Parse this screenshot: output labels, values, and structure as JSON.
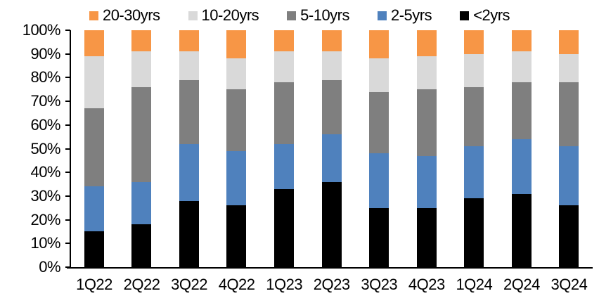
{
  "chart": {
    "legend": [
      {
        "label": "20-30yrs",
        "color": "#F79646"
      },
      {
        "label": "10-20yrs",
        "color": "#D9D9D9"
      },
      {
        "label": "5-10yrs",
        "color": "#7F7F7F"
      },
      {
        "label": "2-5yrs",
        "color": "#4F81BD"
      },
      {
        "label": "<2yrs",
        "color": "#000000"
      }
    ]
  },
  "chart_data": {
    "type": "bar",
    "stacked": "percent",
    "title": "",
    "xlabel": "",
    "ylabel": "",
    "ylim": [
      0,
      100
    ],
    "grid": false,
    "legend_position": "top",
    "y_ticks": [
      "100%",
      "90%",
      "80%",
      "70%",
      "60%",
      "50%",
      "40%",
      "30%",
      "20%",
      "10%",
      "0%"
    ],
    "categories": [
      "1Q22",
      "2Q22",
      "3Q22",
      "4Q22",
      "1Q23",
      "2Q23",
      "3Q23",
      "4Q23",
      "1Q24",
      "2Q24",
      "3Q24"
    ],
    "series": [
      {
        "name": "<2yrs",
        "color": "#000000",
        "values": [
          15,
          18,
          28,
          26,
          33,
          36,
          25,
          25,
          29,
          31,
          26
        ]
      },
      {
        "name": "2-5yrs",
        "color": "#4F81BD",
        "values": [
          19,
          18,
          24,
          23,
          19,
          20,
          23,
          22,
          22,
          23,
          25
        ]
      },
      {
        "name": "5-10yrs",
        "color": "#7F7F7F",
        "values": [
          33,
          40,
          27,
          26,
          26,
          23,
          26,
          28,
          25,
          24,
          27
        ]
      },
      {
        "name": "10-20yrs",
        "color": "#D9D9D9",
        "values": [
          22,
          15,
          12,
          13,
          13,
          12,
          14,
          14,
          14,
          13,
          12
        ]
      },
      {
        "name": "20-30yrs",
        "color": "#F79646",
        "values": [
          11,
          9,
          9,
          12,
          9,
          9,
          12,
          11,
          10,
          9,
          10
        ]
      }
    ]
  }
}
